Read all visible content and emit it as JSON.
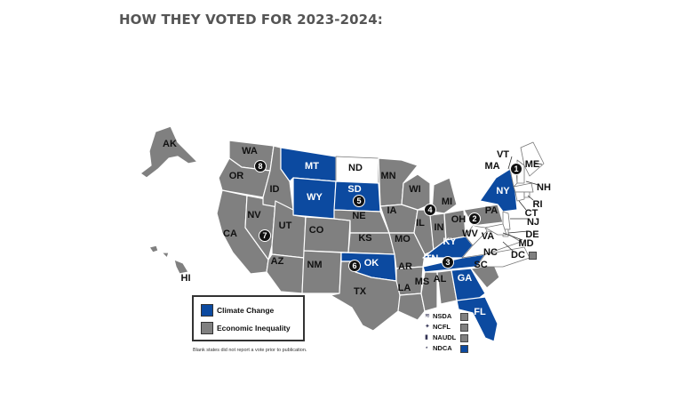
{
  "page": {
    "title": "HOW THEY VOTED FOR 2023-2024:"
  },
  "colors": {
    "climate_change": "#0c4aa0",
    "economic_inequality": "#808080",
    "no_report": "#ffffff",
    "state_border": "#ffffff"
  },
  "legend": {
    "items": [
      {
        "label": "Climate Change",
        "color": "#0c4aa0"
      },
      {
        "label": "Economic Inequality",
        "color": "#808080"
      }
    ],
    "footnote": "Blank states did not report a vote prior to publication."
  },
  "organizations": [
    {
      "name": "NSDA",
      "icon": "nsda-logo-icon",
      "color": "#808080"
    },
    {
      "name": "NCFL",
      "icon": "ncfl-logo-icon",
      "color": "#808080"
    },
    {
      "name": "NAUDL",
      "icon": "naudl-logo-icon",
      "color": "#808080"
    },
    {
      "name": "NDCA",
      "icon": "ndca-logo-icon",
      "color": "#0c4aa0"
    }
  ],
  "states": {
    "climate_change": [
      "MT",
      "WY",
      "SD",
      "NY",
      "KY",
      "TN",
      "GA",
      "FL",
      "OK"
    ],
    "no_report": [
      "ND",
      "VT",
      "ME",
      "NH",
      "MA",
      "RI",
      "CT",
      "NJ",
      "DE",
      "MD",
      "NC",
      "VA",
      "WV"
    ],
    "dc_label": "DC",
    "labels": [
      "AK",
      "HI",
      "WA",
      "OR",
      "CA",
      "NV",
      "ID",
      "MT",
      "WY",
      "UT",
      "AZ",
      "CO",
      "NM",
      "ND",
      "SD",
      "NE",
      "KS",
      "OK",
      "TX",
      "MN",
      "IA",
      "MO",
      "AR",
      "LA",
      "WI",
      "IL",
      "MI",
      "IN",
      "KY",
      "TN",
      "MS",
      "AL",
      "GA",
      "FL",
      "SC",
      "NC",
      "VA",
      "WV",
      "OH",
      "PA",
      "NY",
      "VT",
      "ME",
      "NH",
      "MA",
      "RI",
      "CT",
      "NJ",
      "DE",
      "MD"
    ]
  },
  "markers": [
    "1",
    "2",
    "3",
    "4",
    "5",
    "6",
    "7",
    "8"
  ]
}
